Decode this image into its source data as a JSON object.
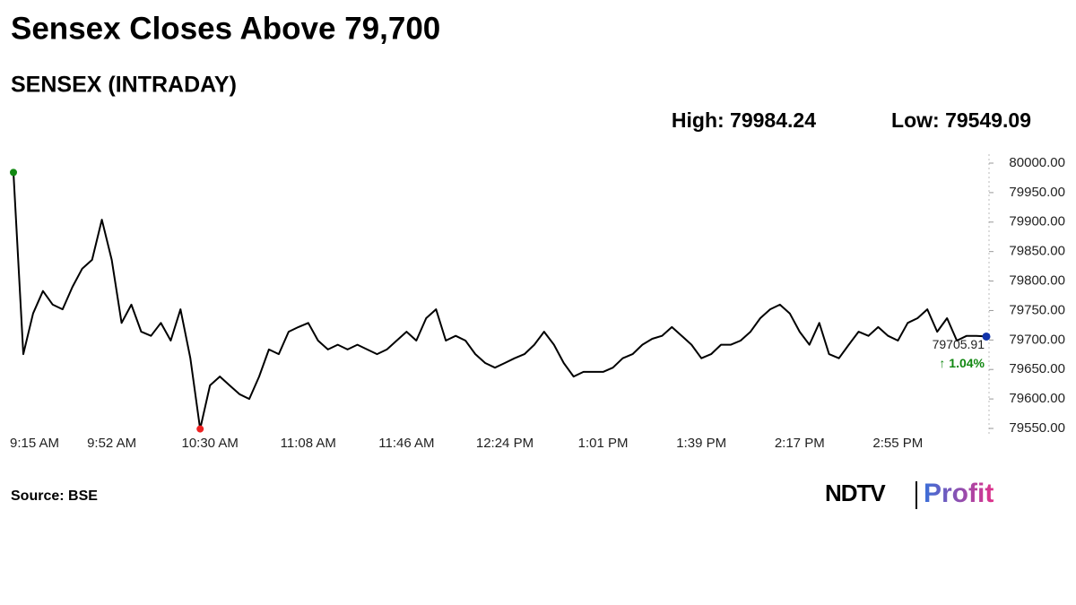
{
  "chart_data": {
    "type": "line",
    "title": "Sensex Closes Above 79,700",
    "subtitle": "SENSEX (INTRADAY)",
    "high_label": "High: 79984.24",
    "low_label": "Low: 79549.09",
    "last_label": "79705.91",
    "change_label": "↑ 1.04%",
    "source": "Source: BSE",
    "logo": {
      "brand": "NDTV",
      "product": "Profit"
    },
    "categories": [
      "9:15 AM",
      null,
      null,
      null,
      null,
      null,
      null,
      null,
      null,
      null,
      "9:52 AM",
      null,
      null,
      null,
      null,
      null,
      null,
      null,
      null,
      null,
      "10:30 AM",
      null,
      null,
      null,
      null,
      null,
      null,
      null,
      null,
      null,
      "11:08 AM",
      null,
      null,
      null,
      null,
      null,
      null,
      null,
      null,
      null,
      "11:46 AM",
      null,
      null,
      null,
      null,
      null,
      null,
      null,
      null,
      null,
      "12:24 PM",
      null,
      null,
      null,
      null,
      null,
      null,
      null,
      null,
      null,
      "1:01 PM",
      null,
      null,
      null,
      null,
      null,
      null,
      null,
      null,
      null,
      "1:39 PM",
      null,
      null,
      null,
      null,
      null,
      null,
      null,
      null,
      null,
      "2:17 PM",
      null,
      null,
      null,
      null,
      null,
      null,
      null,
      null,
      null,
      "2:55 PM",
      null,
      null,
      null,
      null,
      null,
      null,
      null,
      null,
      null
    ],
    "series": [
      {
        "name": "SENSEX",
        "color": "#000000",
        "values": [
          79984.24,
          79676,
          79745,
          79783,
          79760,
          79752,
          79790,
          79821,
          79836,
          79904,
          79836,
          79729,
          79760,
          79714,
          79707,
          79729,
          79699,
          79752,
          79669,
          79549.09,
          79623,
          79638,
          79623,
          79608,
          79600,
          79638,
          79684,
          79676,
          79714,
          79722,
          79729,
          79699,
          79684,
          79692,
          79684,
          79692,
          79684,
          79676,
          79684,
          79699,
          79714,
          79699,
          79737,
          79752,
          79699,
          79707,
          79699,
          79676,
          79661,
          79653,
          79661,
          79669,
          79676,
          79692,
          79714,
          79692,
          79661,
          79638,
          79646,
          79646,
          79646,
          79653,
          79669,
          79676,
          79692,
          79702,
          79707,
          79722,
          79707,
          79692,
          79669,
          79676,
          79692,
          79692,
          79699,
          79714,
          79737,
          79752,
          79760,
          79745,
          79714,
          79692,
          79729,
          79676,
          79669,
          79692,
          79714,
          79707,
          79722,
          79707,
          79699,
          79729,
          79737,
          79752,
          79714,
          79737,
          79699,
          79707,
          79707,
          79705.91
        ]
      }
    ],
    "high_color": "#118811",
    "low_color": "#ee2222",
    "last_color": "#1133aa",
    "change_color": "#118811",
    "ylim": [
      79550,
      80000
    ],
    "yticks": [
      {
        "value": 79550,
        "label": "79550.00"
      },
      {
        "value": 79600,
        "label": "79600.00"
      },
      {
        "value": 79650,
        "label": "79650.00"
      },
      {
        "value": 79700,
        "label": "79700.00"
      },
      {
        "value": 79750,
        "label": "79750.00"
      },
      {
        "value": 79800,
        "label": "79800.00"
      },
      {
        "value": 79850,
        "label": "79850.00"
      },
      {
        "value": 79900,
        "label": "79900.00"
      },
      {
        "value": 79950,
        "label": "79950.00"
      },
      {
        "value": 80000,
        "label": "80000.00"
      }
    ],
    "grid": false
  }
}
